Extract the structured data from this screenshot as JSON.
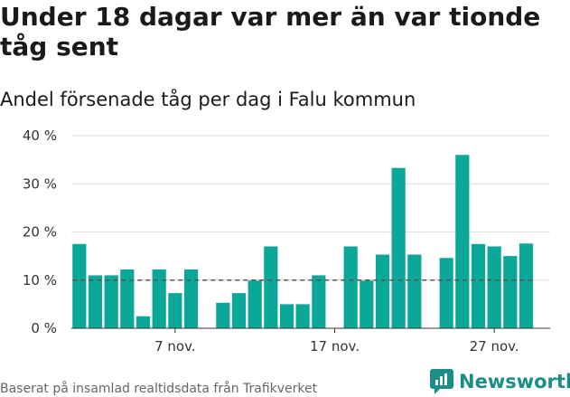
{
  "title": "Under 18 dagar var mer än var tionde tåg sent",
  "subtitle": "Andel försenade tåg per dag i Falu kommun",
  "footer": "Baserat på insamlad realtidsdata från Trafikverket",
  "brand": "Newsworthy",
  "colors": {
    "bar": "#0ba89a",
    "reference_line": "#555555",
    "grid": "#dddddd",
    "brand": "#1b8f87"
  },
  "chart_data": {
    "type": "bar",
    "x": [
      1,
      2,
      3,
      4,
      5,
      6,
      7,
      8,
      10,
      11,
      12,
      13,
      14,
      15,
      16,
      18,
      19,
      20,
      21,
      22,
      24,
      25,
      26,
      27,
      28,
      29
    ],
    "values": [
      17.5,
      11,
      11,
      12.2,
      2.5,
      12.2,
      7.3,
      12.2,
      5.3,
      7.3,
      9.9,
      17,
      5,
      5,
      11,
      17,
      9.9,
      15.3,
      33.3,
      15.3,
      14.6,
      36,
      17.5,
      17,
      15,
      17.6
    ],
    "xticks": [
      {
        "x": 7,
        "label": "7 nov."
      },
      {
        "x": 17,
        "label": "17 nov."
      },
      {
        "x": 27,
        "label": "27 nov."
      }
    ],
    "yticks": [
      {
        "value": 0,
        "label": "0 %"
      },
      {
        "value": 10,
        "label": "10 %"
      },
      {
        "value": 20,
        "label": "20 %"
      },
      {
        "value": 30,
        "label": "30 %"
      },
      {
        "value": 40,
        "label": "40 %"
      }
    ],
    "ylim": [
      0,
      40
    ],
    "xlim": [
      0.5,
      30.5
    ],
    "reference_line": 10,
    "grid": true
  }
}
